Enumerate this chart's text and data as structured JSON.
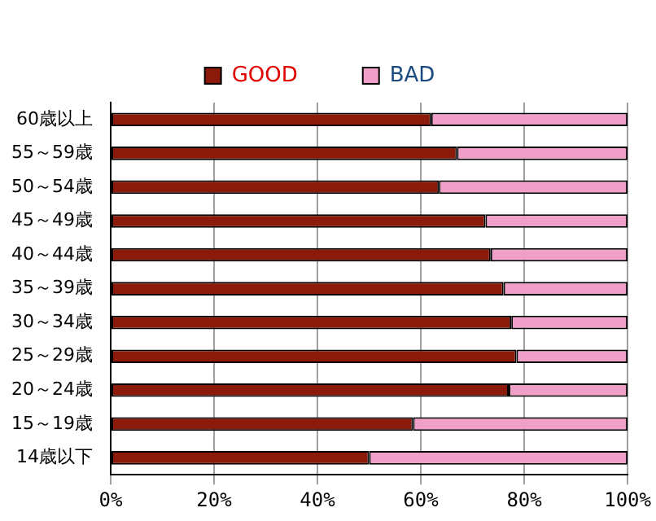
{
  "chart_data": {
    "type": "bar",
    "orientation": "horizontal",
    "stacked": true,
    "categories": [
      "60歳以上",
      "55～59歳",
      "50～54歳",
      "45～49歳",
      "40～44歳",
      "35～39歳",
      "30～34歳",
      "25～29歳",
      "20～24歳",
      "15～19歳",
      "14歳以下"
    ],
    "series": [
      {
        "name": "GOOD",
        "color": "#8b1a0a",
        "values": [
          62,
          67,
          63.5,
          72.5,
          73.5,
          76,
          77.5,
          78.5,
          77,
          58.5,
          50
        ]
      },
      {
        "name": "BAD",
        "color": "#f0a0c8",
        "values": [
          38,
          33,
          36.5,
          27.5,
          26.5,
          24,
          22.5,
          21.5,
          23,
          41.5,
          50
        ]
      }
    ],
    "xlim": [
      0,
      100
    ],
    "xticks": [
      {
        "value": 0,
        "label": "0%"
      },
      {
        "value": 20,
        "label": "20%"
      },
      {
        "value": 40,
        "label": "40%"
      },
      {
        "value": 60,
        "label": "60%"
      },
      {
        "value": 80,
        "label": "80%"
      },
      {
        "value": 100,
        "label": "100%"
      }
    ],
    "grid": "x",
    "legend": "top"
  }
}
